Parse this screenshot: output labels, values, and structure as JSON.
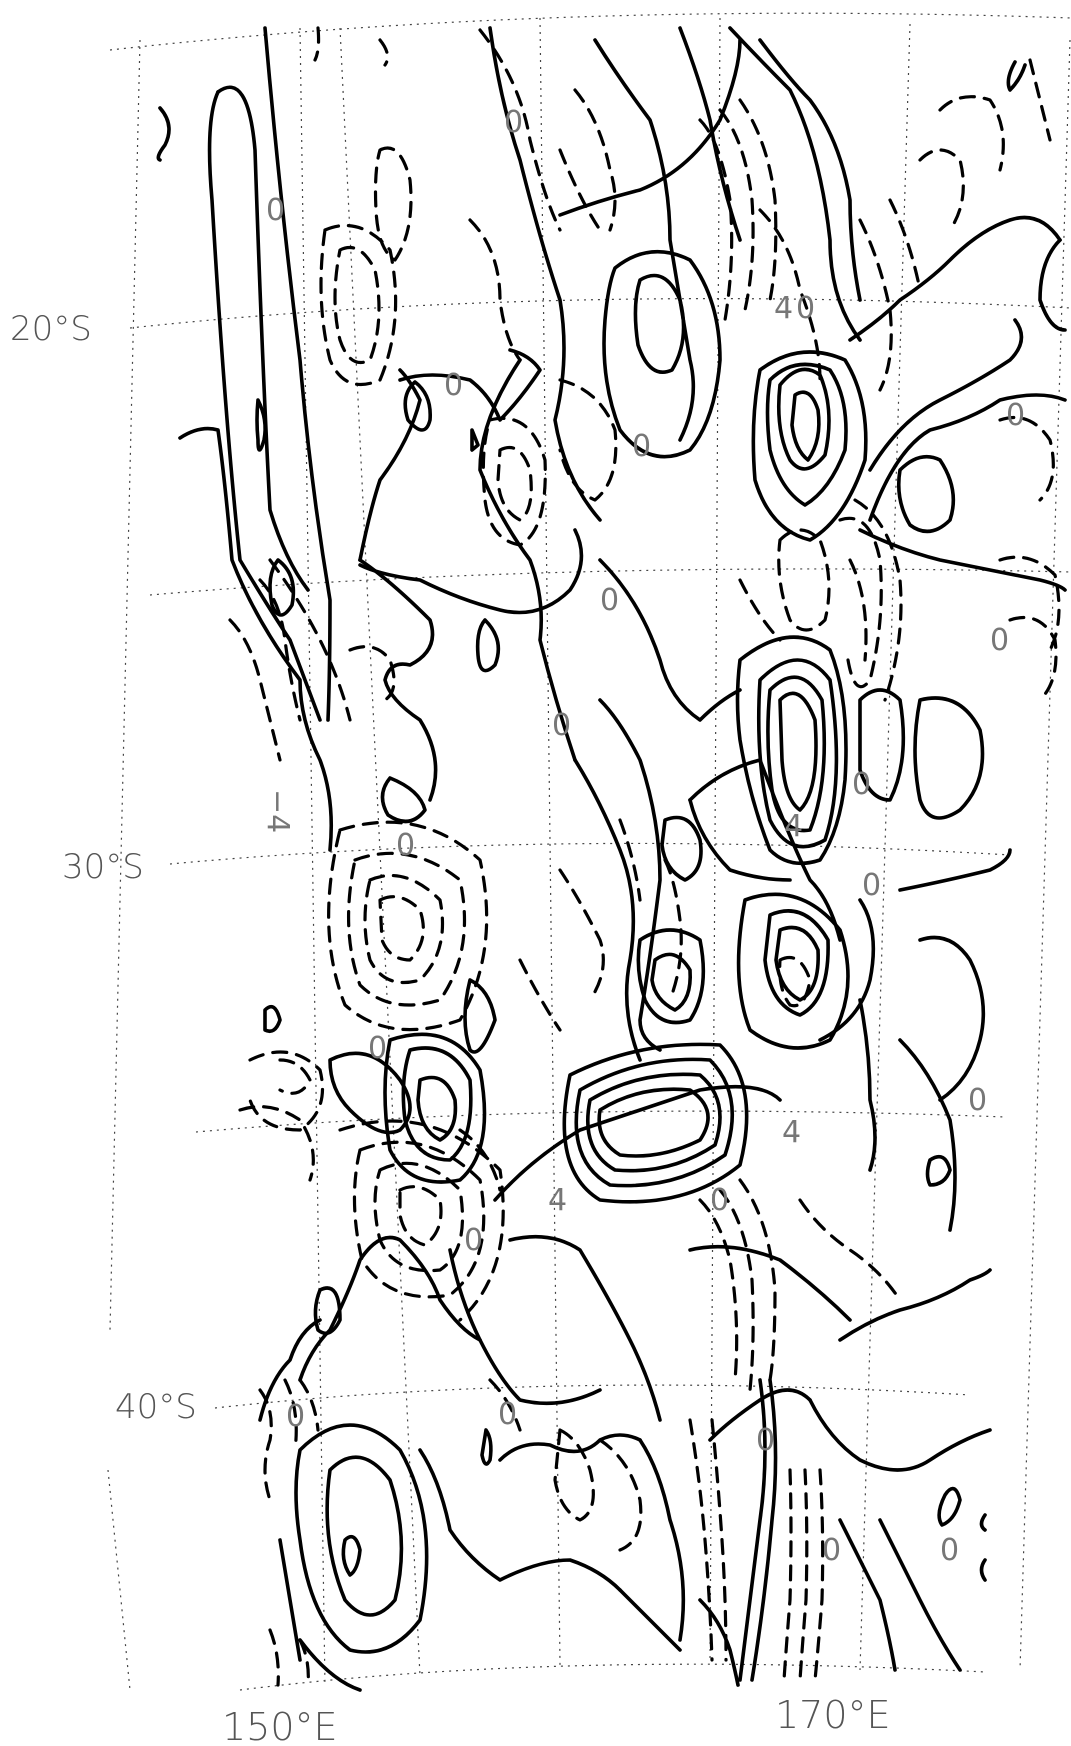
{
  "map": {
    "latitude_labels": [
      "20°S",
      "30°S",
      "40°S"
    ],
    "longitude_labels": [
      "150°E",
      "170°E"
    ],
    "contour_labels": [
      "0",
      "0",
      "0",
      "0",
      "0",
      "0",
      "0",
      "0",
      "0",
      "0",
      "0",
      "0",
      "0",
      "0",
      "0",
      "0",
      "0",
      "0",
      "0",
      "0",
      "0",
      "4",
      "4",
      "4",
      "4",
      "−4"
    ],
    "colors": {
      "contour": "#000000",
      "grid": "#444444",
      "label": "#555555"
    }
  }
}
